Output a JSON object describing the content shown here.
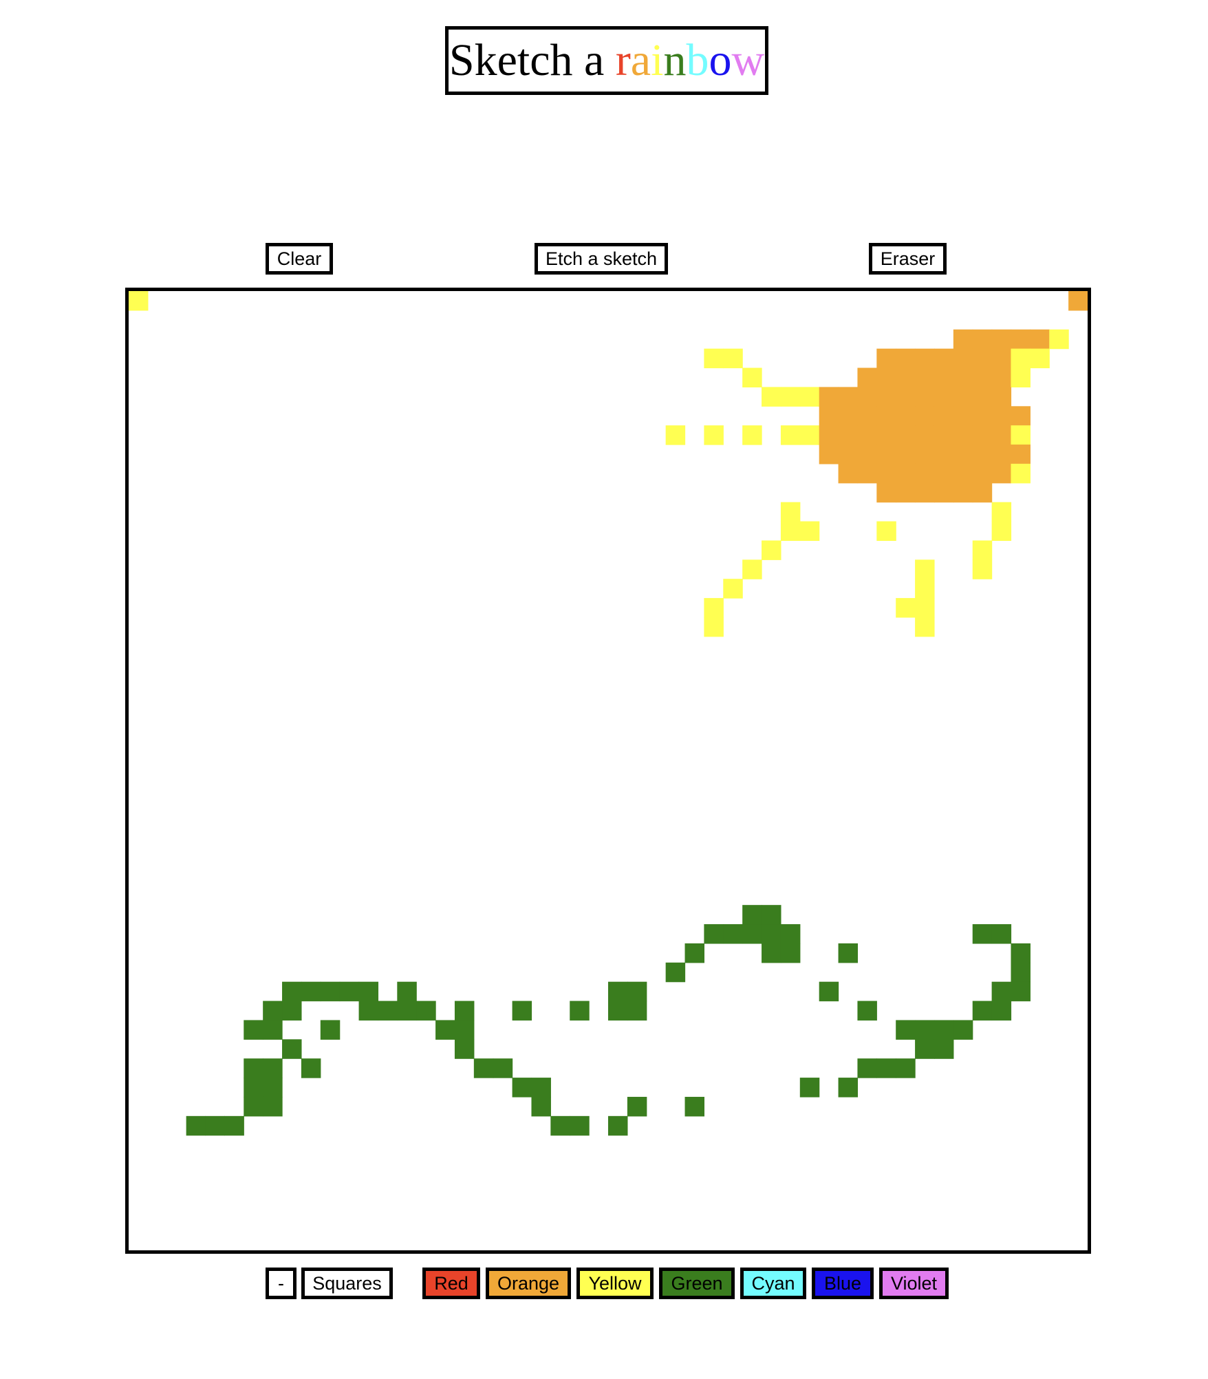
{
  "title": {
    "prefix": "Sketch a ",
    "rainbow_letters": [
      {
        "char": "r",
        "color": "#e8442a"
      },
      {
        "char": "a",
        "color": "#f0a838"
      },
      {
        "char": "i",
        "color": "#ffff52"
      },
      {
        "char": "n",
        "color": "#3a7d1e"
      },
      {
        "char": "b",
        "color": "#74fcff"
      },
      {
        "char": "o",
        "color": "#1a13ee"
      },
      {
        "char": "w",
        "color": "#e17cf0"
      }
    ]
  },
  "toolbar": {
    "clear_label": "Clear",
    "etch_label": "Etch a sketch",
    "eraser_label": "Eraser"
  },
  "bottom": {
    "minus_label": "-",
    "squares_label": "Squares",
    "colors": [
      {
        "label": "Red",
        "color": "#e8442a"
      },
      {
        "label": "Orange",
        "color": "#f0a838"
      },
      {
        "label": "Yellow",
        "color": "#ffff52"
      },
      {
        "label": "Green",
        "color": "#3a7d1e"
      },
      {
        "label": "Cyan",
        "color": "#74fcff"
      },
      {
        "label": "Blue",
        "color": "#1a13ee"
      },
      {
        "label": "Violet",
        "color": "#e17cf0"
      }
    ]
  },
  "grid": {
    "columns": 50,
    "rows": 50,
    "palette": {
      "O": "#f0a838",
      "Y": "#ffff52",
      "G": "#3a7d1e"
    },
    "cells": [
      "Y................................................O",
      "..................................................",
      "...........................................OOOOOY.",
      "..............................YY.......OOOOOOOYY..",
      "................................Y.....OOOOOOOOY...",
      ".................................YYYOOOOOOOOOO....",
      "....................................OOOOOOOOOOO...",
      "............................Y.Y.Y.YYOOOOOOOOOOY...",
      "....................................OOOOOOOOOOO...",
      ".....................................OOOOOOOOOY...",
      ".......................................OOOOOO.....",
      "..................................Y..........Y....",
      "..................................YY...Y.....Y....",
      ".................................Y..........Y.....",
      "................................Y........Y..Y.....",
      "...............................Y.........Y........",
      "..............................Y.........YY........",
      "..............................Y..........Y........",
      "..................................................",
      "..................................................",
      "..................................................",
      "..................................................",
      "..................................................",
      "..................................................",
      "..................................................",
      "..................................................",
      "..................................................",
      "..................................................",
      "..................................................",
      "..................................................",
      "..................................................",
      "..................................................",
      "................................GG................",
      "..............................GGGGG.........GG....",
      ".............................G...GG..G........G...",
      "............................G.................G...",
      "........GGGGG.G..........GG.........G........GG...",
      ".......GG...GGGG.G..G..G.GG...........G.....GG....",
      "......GG..G.....GG......................GGGG......",
      "........G........G.......................GG.......",
      "......GG.G........GG..................GGG.........",
      "......GG............GG.............G.G............",
      "......GG.............G....G..G....................",
      "...GGG................GG.G........................",
      "..................................................",
      "..................................................",
      "..................................................",
      "..................................................",
      "..................................................",
      ".................................................."
    ]
  }
}
